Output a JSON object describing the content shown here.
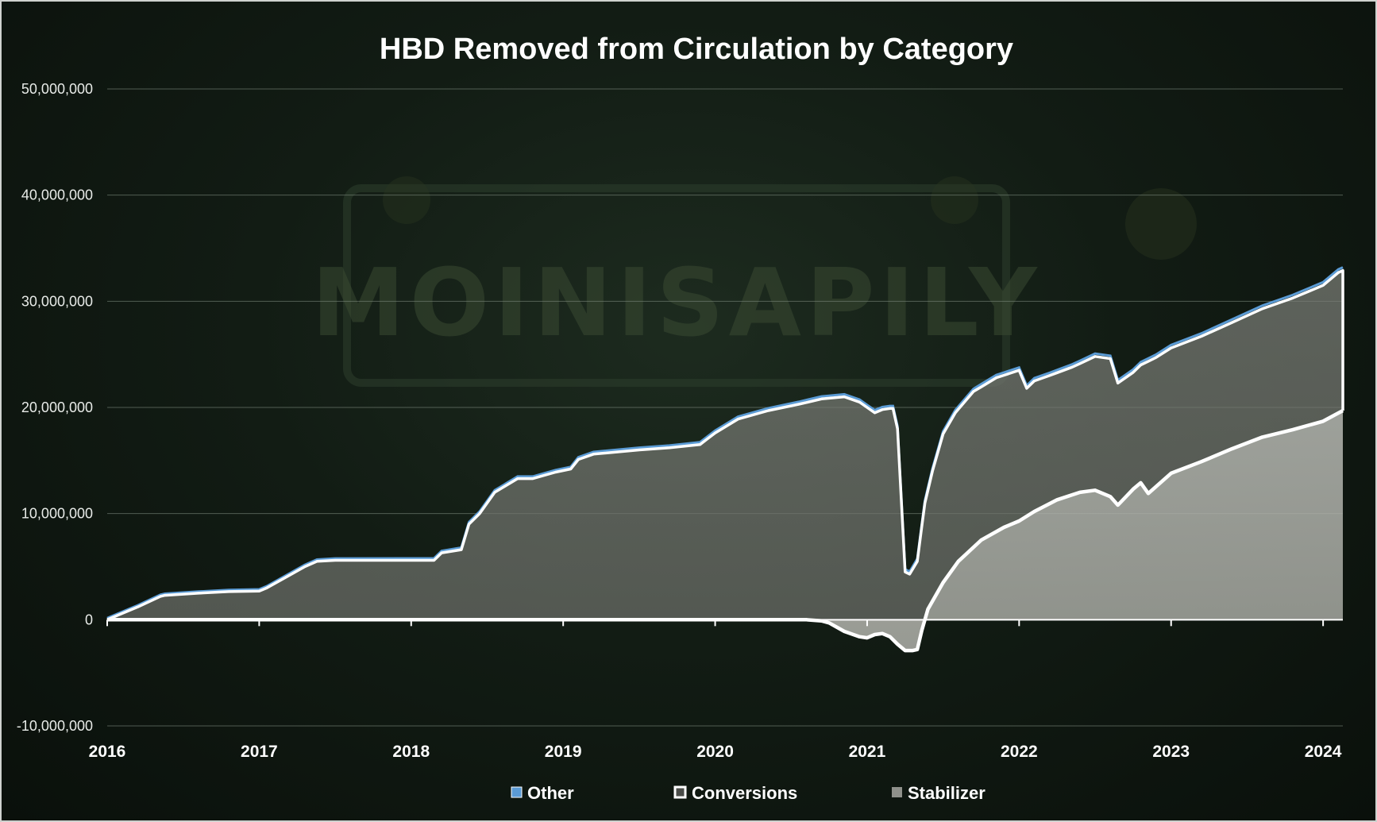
{
  "background": {
    "watermark_text": "MOINISAPILY"
  },
  "chart_data": {
    "type": "area",
    "title": "HBD Removed from Circulation by Category",
    "xlabel": "",
    "ylabel": "",
    "ylim": [
      -10000000,
      50000000
    ],
    "yticks": [
      "50,000,000",
      "40,000,000",
      "30,000,000",
      "20,000,000",
      "10,000,000",
      "0",
      "-10,000,000"
    ],
    "ytick_values": [
      50000000,
      40000000,
      30000000,
      20000000,
      10000000,
      0,
      -10000000
    ],
    "xticks": [
      "2016",
      "2017",
      "2018",
      "2019",
      "2020",
      "2021",
      "2022",
      "2023",
      "2024"
    ],
    "xtick_values": [
      2016,
      2017,
      2018,
      2019,
      2020,
      2021,
      2022,
      2023,
      2024
    ],
    "xlim": [
      2016,
      2024.13
    ],
    "grid": true,
    "legend_position": "bottom",
    "colors": {
      "Other": "#5b9bd5",
      "Conversions": "#ffffff",
      "Stabilizer": "#9a9c96"
    },
    "series": [
      {
        "name": "Stabilizer",
        "note": "stacked total (Conversions + Stabilizer)",
        "x": [
          2016,
          2016.1,
          2016.2,
          2016.35,
          2016.38,
          2016.6,
          2016.8,
          2017.0,
          2017.05,
          2017.2,
          2017.3,
          2017.38,
          2017.5,
          2018.0,
          2018.15,
          2018.2,
          2018.33,
          2018.38,
          2018.45,
          2018.55,
          2018.7,
          2018.8,
          2018.95,
          2019.05,
          2019.1,
          2019.2,
          2019.5,
          2019.7,
          2019.9,
          2020.0,
          2020.15,
          2020.35,
          2020.55,
          2020.7,
          2020.85,
          2020.95,
          2021.05,
          2021.1,
          2021.15,
          2021.17,
          2021.2,
          2021.25,
          2021.28,
          2021.33,
          2021.38,
          2021.43,
          2021.5,
          2021.58,
          2021.7,
          2021.85,
          2022.0,
          2022.05,
          2022.1,
          2022.2,
          2022.35,
          2022.5,
          2022.6,
          2022.65,
          2022.75,
          2022.8,
          2022.9,
          2023.0,
          2023.2,
          2023.4,
          2023.6,
          2023.8,
          2024.0,
          2024.1,
          2024.13
        ],
        "values": [
          0,
          600000,
          1200000,
          2200000,
          2300000,
          2500000,
          2650000,
          2700000,
          3000000,
          4200000,
          5000000,
          5500000,
          5600000,
          5600000,
          5600000,
          6300000,
          6600000,
          9000000,
          10000000,
          12000000,
          13300000,
          13300000,
          13900000,
          14200000,
          15100000,
          15600000,
          16000000,
          16200000,
          16500000,
          17600000,
          18900000,
          19700000,
          20300000,
          20800000,
          21000000,
          20500000,
          19500000,
          19800000,
          19900000,
          19900000,
          18000000,
          4500000,
          4300000,
          5500000,
          11000000,
          14000000,
          17500000,
          19500000,
          21500000,
          22800000,
          23500000,
          21800000,
          22500000,
          23000000,
          23800000,
          24800000,
          24600000,
          22300000,
          23300000,
          24000000,
          24700000,
          25600000,
          26700000,
          28000000,
          29300000,
          30300000,
          31500000,
          32700000,
          32900000
        ]
      },
      {
        "name": "Conversions",
        "x": [
          2016,
          2020.6,
          2020.7,
          2020.75,
          2020.85,
          2020.95,
          2021.0,
          2021.05,
          2021.1,
          2021.15,
          2021.2,
          2021.25,
          2021.3,
          2021.33,
          2021.36,
          2021.4,
          2021.5,
          2021.6,
          2021.75,
          2021.9,
          2022.0,
          2022.1,
          2022.25,
          2022.4,
          2022.5,
          2022.6,
          2022.65,
          2022.75,
          2022.8,
          2022.85,
          2023.0,
          2023.2,
          2023.4,
          2023.6,
          2023.8,
          2024.0,
          2024.13
        ],
        "values": [
          0,
          0,
          -100000,
          -300000,
          -1100000,
          -1600000,
          -1700000,
          -1400000,
          -1300000,
          -1600000,
          -2300000,
          -2900000,
          -2900000,
          -2800000,
          -1000000,
          1000000,
          3500000,
          5500000,
          7500000,
          8700000,
          9300000,
          10200000,
          11300000,
          12000000,
          12200000,
          11600000,
          10800000,
          12300000,
          12900000,
          11900000,
          13800000,
          14900000,
          16100000,
          17200000,
          17900000,
          18700000,
          19700000
        ]
      },
      {
        "name": "Other",
        "note": "thin band on top of the stacked total",
        "x": [
          2016,
          2024.13
        ],
        "values": [
          0,
          150000
        ]
      }
    ]
  }
}
